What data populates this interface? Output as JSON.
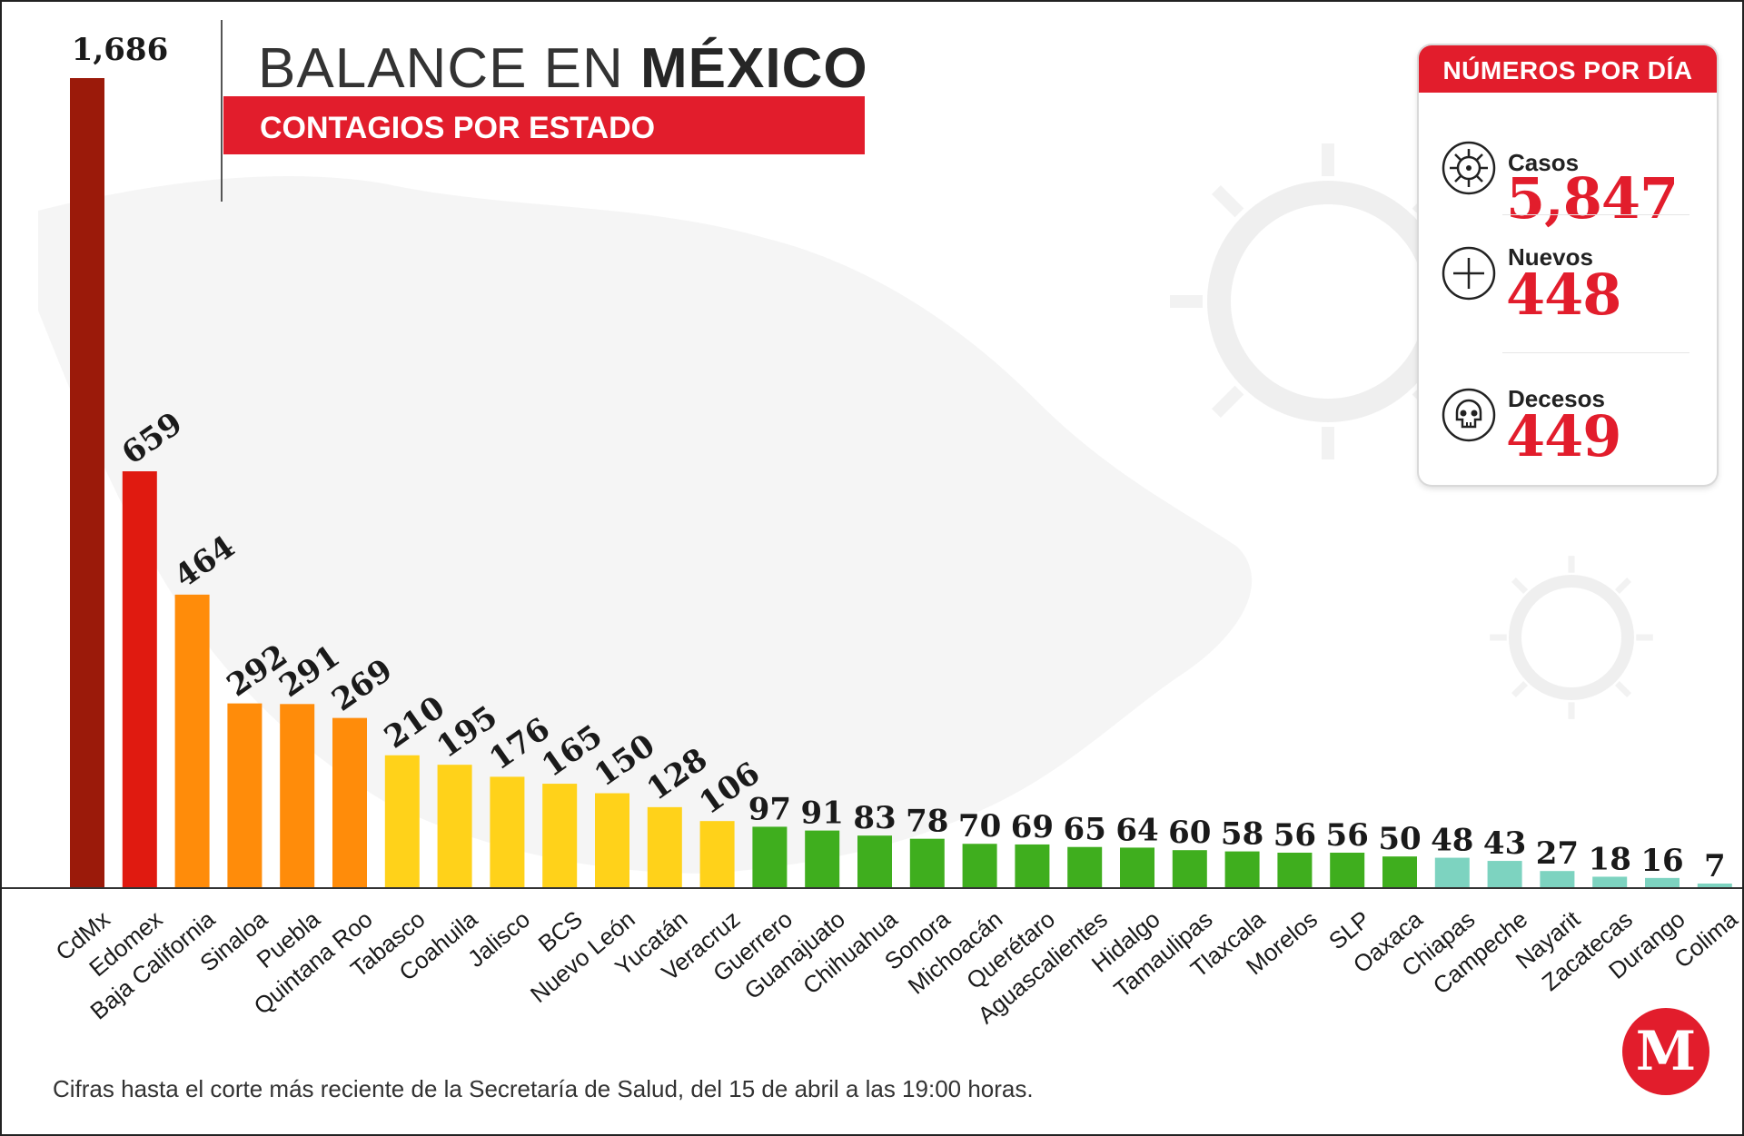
{
  "header": {
    "title_light": "BALANCE EN ",
    "title_bold": "MÉXICO",
    "subtitle": "CONTAGIOS POR ESTADO"
  },
  "panel": {
    "title": "NÚMEROS POR DÍA",
    "stats": [
      {
        "label": "Casos",
        "value": "5,847",
        "icon": "virus-icon"
      },
      {
        "label": "Nuevos",
        "value": "448",
        "icon": "plus-circle-icon"
      },
      {
        "label": "Decesos",
        "value": "449",
        "icon": "skull-icon"
      }
    ]
  },
  "footnote": "Cifras hasta el corte más reciente de la Secretaría de Salud, del 15 de abril a las 19:00 horas.",
  "logo": {
    "letter": "M"
  },
  "colors": {
    "accent_red": "#e21d2c",
    "dark_red": "#9b1a0a",
    "red": "#e01a10",
    "orange": "#ff8c0a",
    "yellow": "#ffd21a",
    "green": "#3fae1e",
    "teal": "#7dd3c0",
    "map_bg": "#ececec"
  },
  "chart_data": {
    "type": "bar",
    "title": "BALANCE EN MÉXICO",
    "subtitle": "CONTAGIOS POR ESTADO",
    "categories": [
      "CdMx",
      "Edomex",
      "Baja California",
      "Sinaloa",
      "Puebla",
      "Quintana Roo",
      "Tabasco",
      "Coahuila",
      "Jalisco",
      "BCS",
      "Nuevo León",
      "Yucatán",
      "Veracruz",
      "Guerrero",
      "Guanajuato",
      "Chihuahua",
      "Sonora",
      "Michoacán",
      "Querétaro",
      "Aguascalientes",
      "Hidalgo",
      "Tamaulipas",
      "Tlaxcala",
      "Morelos",
      "SLP",
      "Oaxaca",
      "Chiapas",
      "Campeche",
      "Nayarit",
      "Zacatecas",
      "Durango",
      "Colima"
    ],
    "values": [
      1686,
      659,
      464,
      292,
      291,
      269,
      210,
      195,
      176,
      165,
      150,
      128,
      106,
      97,
      91,
      83,
      78,
      70,
      69,
      65,
      64,
      60,
      58,
      56,
      56,
      50,
      48,
      43,
      27,
      18,
      16,
      7
    ],
    "labels": [
      "1,686",
      "659",
      "464",
      "292",
      "291",
      "269",
      "210",
      "195",
      "176",
      "165",
      "150",
      "128",
      "106",
      "97",
      "91",
      "83",
      "78",
      "70",
      "69",
      "65",
      "64",
      "60",
      "58",
      "56",
      "56",
      "50",
      "48",
      "43",
      "27",
      "18",
      "16",
      "7"
    ],
    "color_groups": [
      "dark_red",
      "red",
      "orange",
      "orange",
      "orange",
      "orange",
      "yellow",
      "yellow",
      "yellow",
      "yellow",
      "yellow",
      "yellow",
      "yellow",
      "green",
      "green",
      "green",
      "green",
      "green",
      "green",
      "green",
      "green",
      "green",
      "green",
      "green",
      "green",
      "green",
      "teal",
      "teal",
      "teal",
      "teal",
      "teal",
      "teal"
    ],
    "xlabel": "",
    "ylabel": "",
    "grid": false,
    "legend": false
  }
}
